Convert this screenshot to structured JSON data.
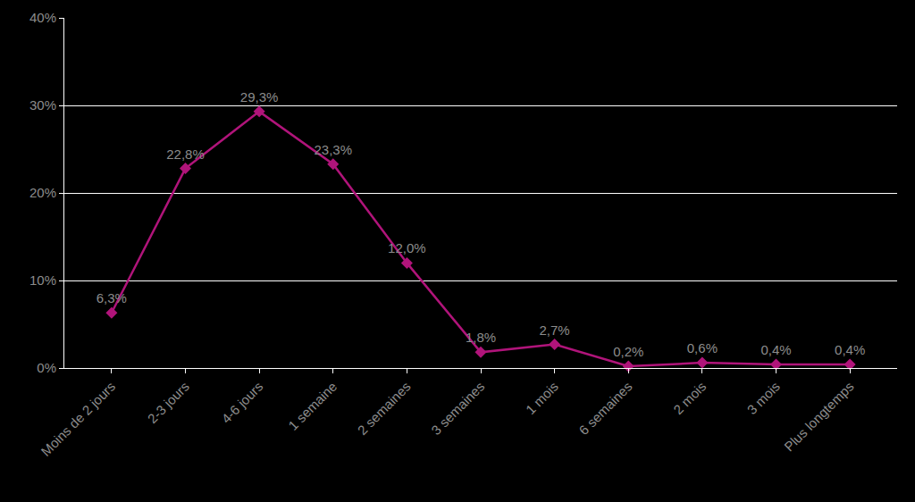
{
  "chart_data": {
    "type": "line",
    "categories": [
      "Moins de 2 jours",
      "2-3 jours",
      "4-6 jours",
      "1 semaine",
      "2 semaines",
      "3 semaines",
      "1 mois",
      "6 semaines",
      "2 mois",
      "3 mois",
      "Plus longtemps"
    ],
    "values": [
      6.3,
      22.8,
      29.3,
      23.3,
      12.0,
      1.8,
      2.7,
      0.2,
      0.6,
      0.4,
      0.4
    ],
    "value_labels": [
      "6,3%",
      "22,8%",
      "29,3%",
      "23,3%",
      "12,0%",
      "1,8%",
      "2,7%",
      "0,2%",
      "0,6%",
      "0,4%",
      "0,4%"
    ],
    "color": "#b0147a",
    "marker": "diamond",
    "ylim": [
      0,
      40
    ],
    "yticks": [
      {
        "value": 0,
        "label": "0%"
      },
      {
        "value": 10,
        "label": "10%"
      },
      {
        "value": 20,
        "label": "20%"
      },
      {
        "value": 30,
        "label": "30%"
      },
      {
        "value": 40,
        "label": "40%"
      }
    ],
    "grid": true,
    "data_labels": true
  }
}
